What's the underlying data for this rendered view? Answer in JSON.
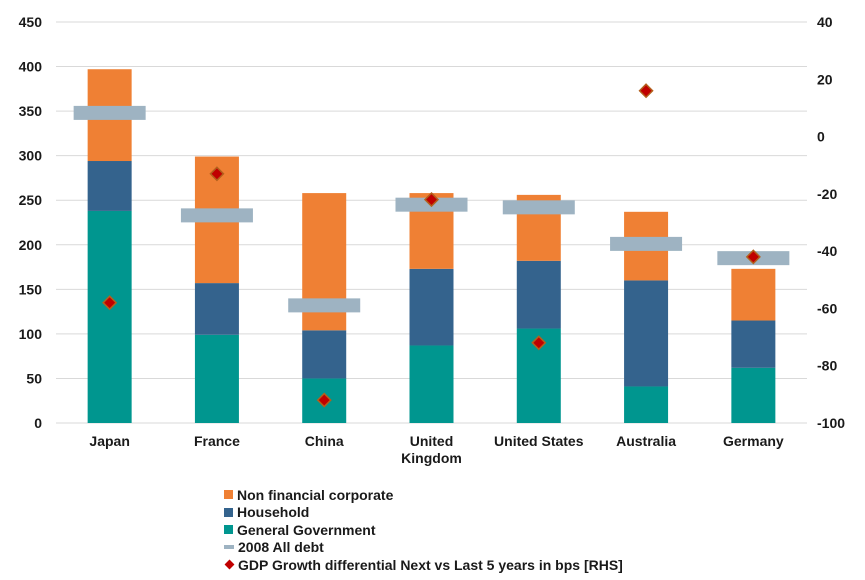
{
  "chart_data": {
    "type": "bar",
    "stacked": true,
    "categories": [
      "Japan",
      "France",
      "China",
      "United Kingdom",
      "United States",
      "Australia",
      "Germany"
    ],
    "category_lines": [
      [
        "Japan"
      ],
      [
        "France"
      ],
      [
        "China"
      ],
      [
        "United",
        "Kingdom"
      ],
      [
        "United States"
      ],
      [
        "Australia"
      ],
      [
        "Germany"
      ]
    ],
    "series": [
      {
        "name": "General Government",
        "color": "#00968f",
        "values": [
          238,
          99,
          50,
          87,
          106,
          41,
          62
        ]
      },
      {
        "name": "Household",
        "color": "#34638d",
        "values": [
          56,
          58,
          54,
          86,
          76,
          119,
          53
        ]
      },
      {
        "name": "Non financial corporate",
        "color": "#ef8034",
        "values": [
          103,
          142,
          154,
          85,
          74,
          77,
          58
        ]
      }
    ],
    "overlays": [
      {
        "name": "2008 All debt",
        "type": "marker-line",
        "axis": "left",
        "color": "#9eb3c2",
        "values": [
          348,
          233,
          132,
          245,
          242,
          201,
          185
        ]
      },
      {
        "name": "GDP Growth differential Next vs Last 5 years in bps [RHS]",
        "type": "scatter-diamond",
        "axis": "right",
        "color": "#c00000",
        "edge_color": "#b35f1c",
        "values": [
          -58,
          -13,
          -92,
          -22,
          -72,
          16,
          -42
        ]
      }
    ],
    "left_axis": {
      "min": 0,
      "max": 450,
      "step": 50
    },
    "right_axis": {
      "min": -100,
      "max": 40,
      "step": 20
    },
    "grid": true,
    "legend_position": "bottom",
    "legend": [
      {
        "label": "Non financial corporate",
        "shape": "square",
        "color": "#ef8034"
      },
      {
        "label": "Household",
        "shape": "square",
        "color": "#34638d"
      },
      {
        "label": "General Government",
        "shape": "square",
        "color": "#00968f"
      },
      {
        "label": "2008 All debt",
        "shape": "line",
        "color": "#9eb3c2"
      },
      {
        "label": "GDP Growth differential Next vs Last 5 years in bps [RHS]",
        "shape": "diamond",
        "color": "#c00000"
      }
    ]
  }
}
